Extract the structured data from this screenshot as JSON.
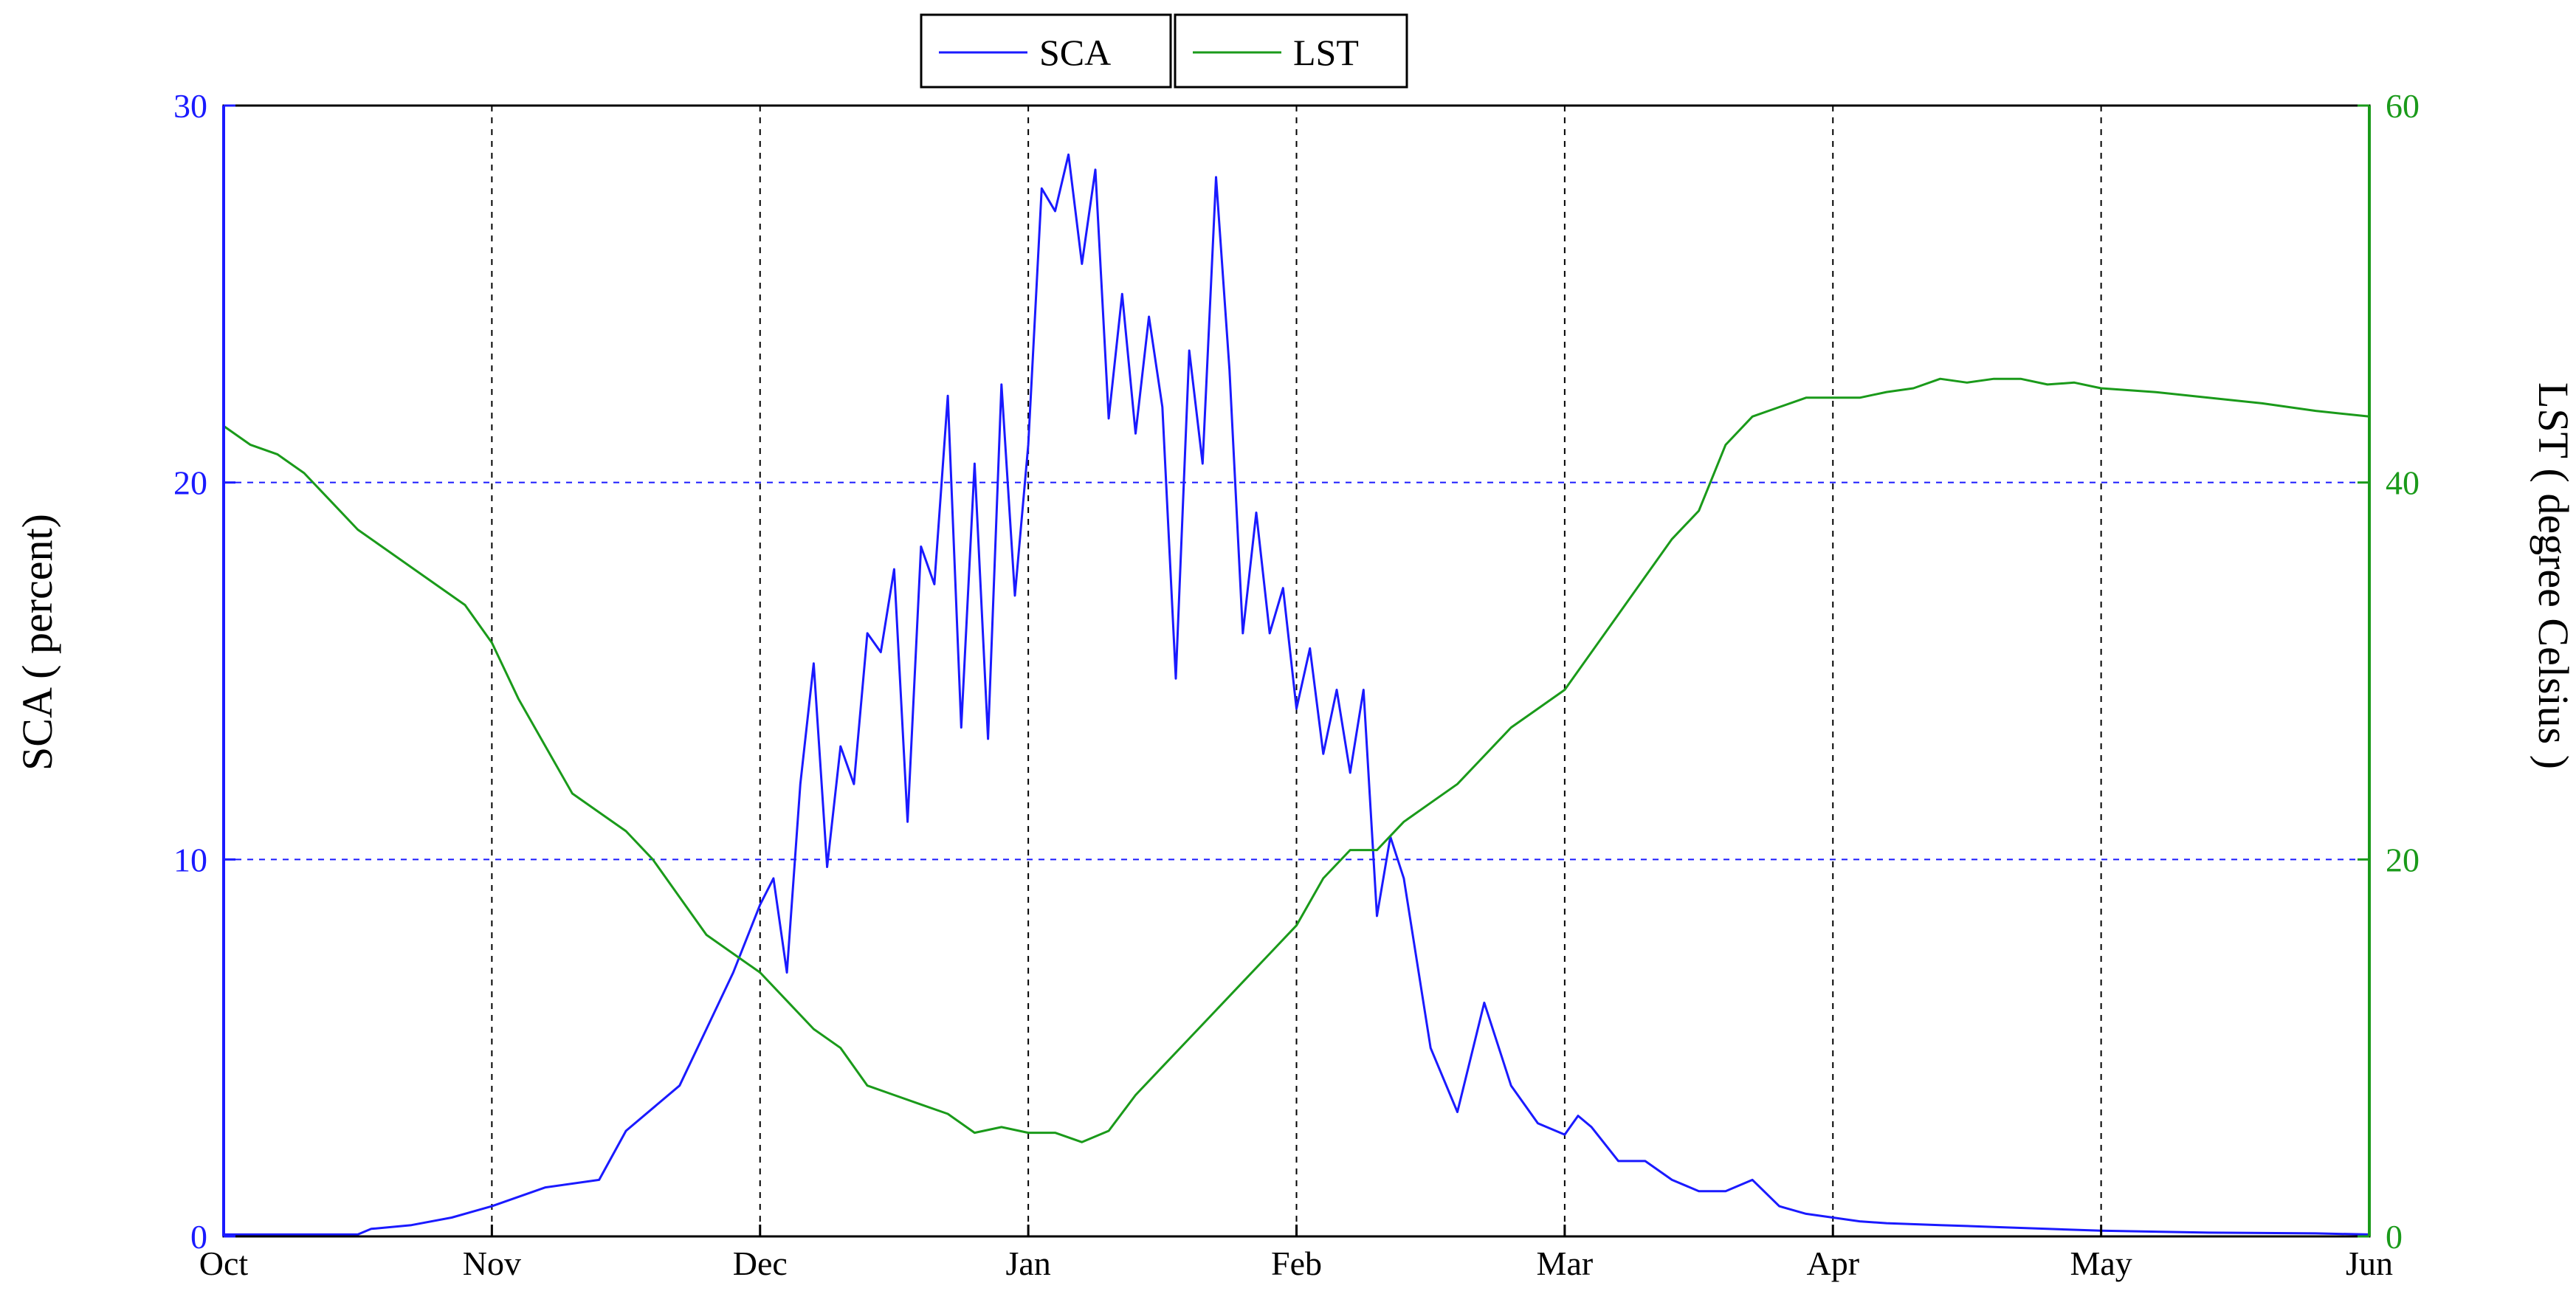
{
  "chart_data": {
    "type": "line",
    "title": "",
    "xlabel": "",
    "ylabel_left": "SCA ( percent)",
    "ylabel_right": "LST ( degree Celsius )",
    "x_categories": [
      "Oct",
      "Nov",
      "Dec",
      "Jan",
      "Feb",
      "Mar",
      "Apr",
      "May",
      "Jun"
    ],
    "ylim_left": [
      0,
      30
    ],
    "ylim_right": [
      0,
      60
    ],
    "yticks_left": [
      "0",
      "10",
      "20",
      "30"
    ],
    "yticks_right": [
      "0",
      "20",
      "40",
      "60"
    ],
    "grid": true,
    "legend_position": "top-center",
    "colors": {
      "SCA": "#1a1aff",
      "LST": "#1a9a1a"
    },
    "series": [
      {
        "name": "SCA",
        "axis": "left",
        "x": [
          0,
          0.5,
          0.55,
          0.7,
          0.85,
          1.0,
          1.2,
          1.4,
          1.5,
          1.7,
          1.8,
          1.9,
          2.0,
          2.05,
          2.1,
          2.15,
          2.2,
          2.25,
          2.3,
          2.35,
          2.4,
          2.45,
          2.5,
          2.55,
          2.6,
          2.65,
          2.7,
          2.75,
          2.8,
          2.85,
          2.9,
          2.95,
          3.0,
          3.05,
          3.1,
          3.15,
          3.2,
          3.25,
          3.3,
          3.35,
          3.4,
          3.45,
          3.5,
          3.55,
          3.6,
          3.65,
          3.7,
          3.75,
          3.8,
          3.85,
          3.9,
          3.95,
          4.0,
          4.05,
          4.1,
          4.15,
          4.2,
          4.25,
          4.3,
          4.35,
          4.4,
          4.5,
          4.6,
          4.7,
          4.8,
          4.9,
          5.0,
          5.05,
          5.1,
          5.2,
          5.3,
          5.4,
          5.5,
          5.6,
          5.7,
          5.8,
          5.9,
          6.0,
          6.1,
          6.2,
          6.4,
          6.6,
          6.8,
          7.0,
          7.4,
          7.8,
          8.0
        ],
        "values": [
          0.05,
          0.05,
          0.2,
          0.3,
          0.5,
          0.8,
          1.3,
          1.5,
          2.8,
          4.0,
          5.5,
          7.0,
          8.8,
          9.5,
          7.0,
          12.0,
          15.2,
          9.8,
          13.0,
          12.0,
          16.0,
          15.5,
          17.7,
          11.0,
          18.3,
          17.3,
          22.3,
          13.5,
          20.5,
          13.2,
          22.6,
          17.0,
          21.0,
          27.8,
          27.2,
          28.7,
          25.8,
          28.3,
          21.7,
          25.0,
          21.3,
          24.4,
          22.0,
          14.8,
          23.5,
          20.5,
          28.1,
          23.0,
          16.0,
          19.2,
          16.0,
          17.2,
          14.0,
          15.6,
          12.8,
          14.5,
          12.3,
          14.5,
          8.5,
          10.6,
          9.5,
          5.0,
          3.3,
          6.2,
          4.0,
          3.0,
          2.7,
          3.2,
          2.9,
          2.0,
          2.0,
          1.5,
          1.2,
          1.2,
          1.5,
          0.8,
          0.6,
          0.5,
          0.4,
          0.35,
          0.3,
          0.25,
          0.2,
          0.15,
          0.1,
          0.08,
          0.05
        ]
      },
      {
        "name": "LST",
        "axis": "right",
        "x": [
          0,
          0.1,
          0.2,
          0.3,
          0.4,
          0.5,
          0.6,
          0.7,
          0.8,
          0.9,
          1.0,
          1.1,
          1.2,
          1.3,
          1.4,
          1.5,
          1.6,
          1.7,
          1.8,
          1.9,
          2.0,
          2.1,
          2.2,
          2.3,
          2.4,
          2.5,
          2.6,
          2.7,
          2.8,
          2.9,
          3.0,
          3.1,
          3.2,
          3.3,
          3.4,
          3.5,
          3.6,
          3.7,
          3.8,
          3.9,
          4.0,
          4.1,
          4.2,
          4.3,
          4.4,
          4.5,
          4.6,
          4.7,
          4.8,
          4.9,
          5.0,
          5.1,
          5.2,
          5.3,
          5.4,
          5.5,
          5.6,
          5.7,
          5.8,
          5.9,
          6.0,
          6.1,
          6.2,
          6.3,
          6.4,
          6.5,
          6.6,
          6.7,
          6.8,
          6.9,
          7.0,
          7.2,
          7.4,
          7.6,
          7.8,
          8.0
        ],
        "values": [
          43,
          42,
          41.5,
          40.5,
          39,
          37.5,
          36.5,
          35.5,
          34.5,
          33.5,
          31.5,
          28.5,
          26,
          23.5,
          22.5,
          21.5,
          20,
          18,
          16,
          15,
          14,
          12.5,
          11,
          10,
          8,
          7.5,
          7,
          6.5,
          5.5,
          5.8,
          5.5,
          5.5,
          5.0,
          5.6,
          7.5,
          9,
          10.5,
          12,
          13.5,
          15,
          16.5,
          19,
          20.5,
          20.5,
          22,
          23,
          24,
          25.5,
          27,
          28,
          29,
          31,
          33,
          35,
          37,
          38.5,
          42,
          43.5,
          44,
          44.5,
          44.5,
          44.5,
          44.8,
          45,
          45.5,
          45.3,
          45.5,
          45.5,
          45.2,
          45.3,
          45,
          44.8,
          44.5,
          44.2,
          43.8,
          43.5
        ]
      }
    ]
  }
}
